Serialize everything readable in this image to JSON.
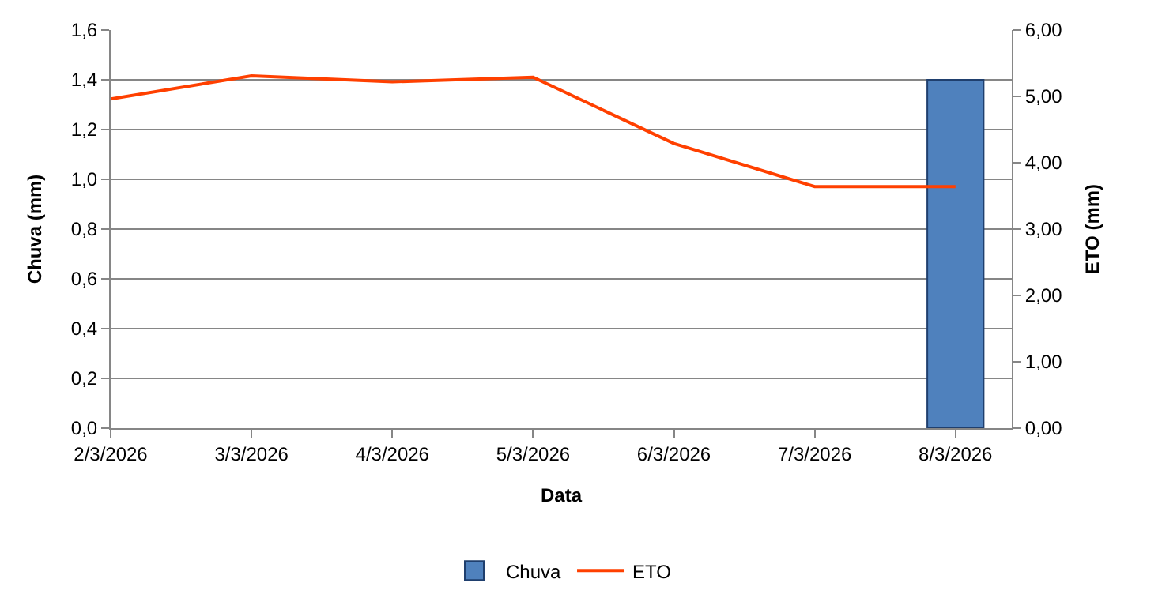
{
  "chart_data": {
    "type": "bar",
    "xlabel": "Data",
    "ylabel": "Chuva (mm)",
    "y2label": "ETO (mm)",
    "categories": [
      "2/3/2026",
      "3/3/2026",
      "4/3/2026",
      "5/3/2026",
      "6/3/2026",
      "7/3/2026",
      "8/3/2026"
    ],
    "series": [
      {
        "name": "Chuva",
        "color": "#4f81bd",
        "values": [
          null,
          null,
          null,
          null,
          null,
          null,
          1.4
        ]
      },
      {
        "name": "ETO",
        "type": "line",
        "axis": "y2",
        "color": "#ff4000",
        "values": [
          4.96,
          5.31,
          5.22,
          5.29,
          4.29,
          3.64,
          3.64
        ]
      }
    ],
    "ylim": [
      0,
      1.6
    ],
    "yticks": [
      {
        "value": 0,
        "label": "0,0"
      },
      {
        "value": 0.2,
        "label": "0,2"
      },
      {
        "value": 0.4,
        "label": "0,4"
      },
      {
        "value": 0.6,
        "label": "0,6"
      },
      {
        "value": 0.8,
        "label": "0,8"
      },
      {
        "value": 1,
        "label": "1,0"
      },
      {
        "value": 1.2,
        "label": "1,2"
      },
      {
        "value": 1.4,
        "label": "1,4"
      },
      {
        "value": 1.6,
        "label": "1,6"
      }
    ],
    "y2lim": [
      0,
      6
    ],
    "y2ticks": [
      {
        "value": 0,
        "label": "0,00"
      },
      {
        "value": 1,
        "label": "1,00"
      },
      {
        "value": 2,
        "label": "2,00"
      },
      {
        "value": 3,
        "label": "3,00"
      },
      {
        "value": 4,
        "label": "4,00"
      },
      {
        "value": 5,
        "label": "5,00"
      },
      {
        "value": 6,
        "label": "6,00"
      }
    ],
    "grid": "y",
    "legend": "bottom",
    "marker": "none",
    "line_style": "solid"
  }
}
